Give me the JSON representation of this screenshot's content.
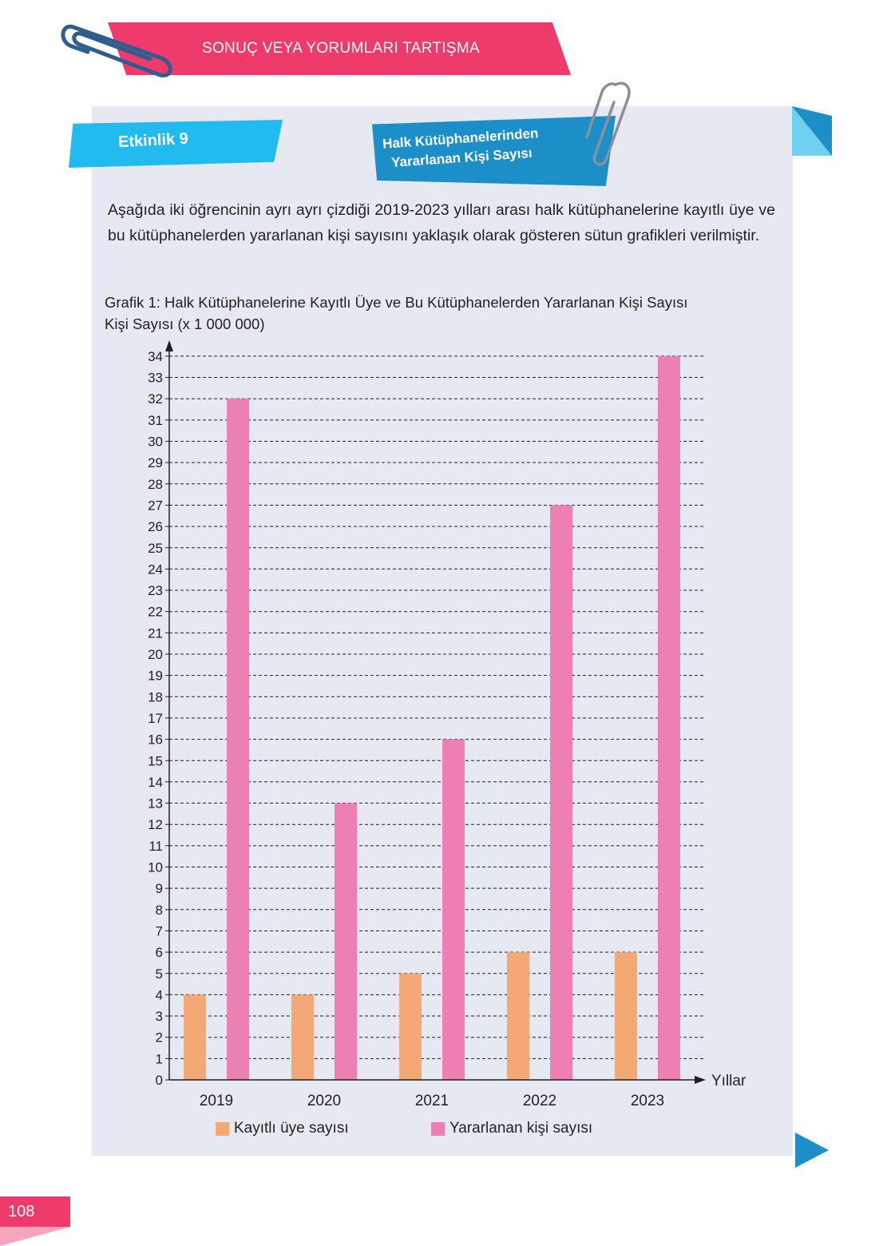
{
  "header": {
    "title": "SONUÇ VEYA YORUMLARI TARTIŞMA"
  },
  "activity": {
    "label": "Etkinlik 9",
    "tag_line1": "Halk Kütüphanelerinden",
    "tag_line2": "Yararlanan Kişi Sayısı"
  },
  "intro_text": "Aşağıda iki öğrencinin ayrı ayrı çizdiği 2019-2023 yılları arası halk kütüphanelerine kayıtlı üye ve bu kütüphanelerden yararlanan kişi sayısını yaklaşık olarak gösteren sütun grafikleri verilmiştir.",
  "chart_data": {
    "type": "bar",
    "title": "Grafik 1: Halk Kütüphanelerine Kayıtlı Üye ve Bu Kütüphanelerden Yararlanan Kişi Sayısı",
    "ylabel": "Kişi Sayısı (x 1 000 000)",
    "xlabel": "Yıllar",
    "categories": [
      "2019",
      "2020",
      "2021",
      "2022",
      "2023"
    ],
    "series": [
      {
        "name": "Kayıtlı üye sayısı",
        "values": [
          4,
          4,
          5,
          6,
          6
        ],
        "color": "#f4a876"
      },
      {
        "name": "Yararlanan kişi sayısı",
        "values": [
          32,
          13,
          16,
          27,
          34
        ],
        "color": "#ee7fb3"
      }
    ],
    "ylim": [
      0,
      34
    ],
    "grid": true,
    "legend": "bottom"
  },
  "page": {
    "number": "108"
  },
  "colors": {
    "accent_pink": "#ef3b6b",
    "accent_blue": "#22bbef",
    "card_bg": "#e6e9f1"
  }
}
